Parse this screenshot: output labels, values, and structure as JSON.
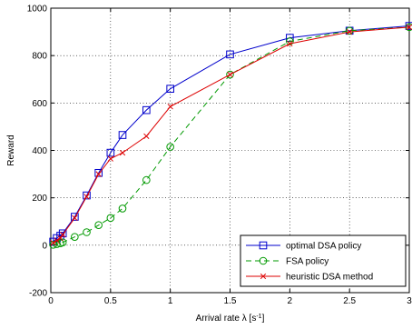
{
  "chart_data": {
    "type": "line",
    "title": "",
    "xlabel": "Arrival rate λ  [s",
    "xlabel_sup": "-1",
    "xlabel_end": "]",
    "ylabel": "Reward",
    "xlim": [
      0,
      3
    ],
    "ylim": [
      -200,
      1000
    ],
    "xticks": [
      0,
      0.5,
      1,
      1.5,
      2,
      2.5,
      3
    ],
    "xtick_labels": [
      "0",
      "0.5",
      "1",
      "1.5",
      "2",
      "2.5",
      "3"
    ],
    "yticks": [
      -200,
      0,
      200,
      400,
      600,
      800,
      1000
    ],
    "ytick_labels": [
      "-200",
      "0",
      "200",
      "400",
      "600",
      "800",
      "1000"
    ],
    "grid": true,
    "legend_position": "bottom-right",
    "series": [
      {
        "name": "optimal DSA policy",
        "color": "#0000cc",
        "line_style": "solid",
        "marker": "square",
        "x": [
          0.02,
          0.05,
          0.08,
          0.1,
          0.2,
          0.3,
          0.4,
          0.5,
          0.6,
          0.8,
          1.0,
          1.5,
          2.0,
          2.5,
          3.0
        ],
        "y": [
          15,
          30,
          40,
          50,
          120,
          210,
          305,
          390,
          465,
          570,
          660,
          805,
          875,
          905,
          925
        ]
      },
      {
        "name": "FSA policy",
        "color": "#009900",
        "line_style": "dashed",
        "marker": "circle",
        "x": [
          0.02,
          0.05,
          0.08,
          0.1,
          0.2,
          0.3,
          0.4,
          0.5,
          0.6,
          0.8,
          1.0,
          1.5,
          2.0,
          2.5,
          3.0
        ],
        "y": [
          2,
          5,
          8,
          12,
          35,
          55,
          85,
          115,
          155,
          275,
          415,
          720,
          860,
          905,
          920
        ]
      },
      {
        "name": "heuristic DSA method",
        "color": "#dd0000",
        "line_style": "solid",
        "marker": "x",
        "x": [
          0.02,
          0.05,
          0.08,
          0.1,
          0.2,
          0.3,
          0.4,
          0.5,
          0.6,
          0.8,
          1.0,
          1.5,
          2.0,
          2.5,
          3.0
        ],
        "y": [
          10,
          20,
          30,
          45,
          115,
          205,
          300,
          365,
          390,
          460,
          585,
          720,
          850,
          900,
          920
        ]
      }
    ]
  }
}
